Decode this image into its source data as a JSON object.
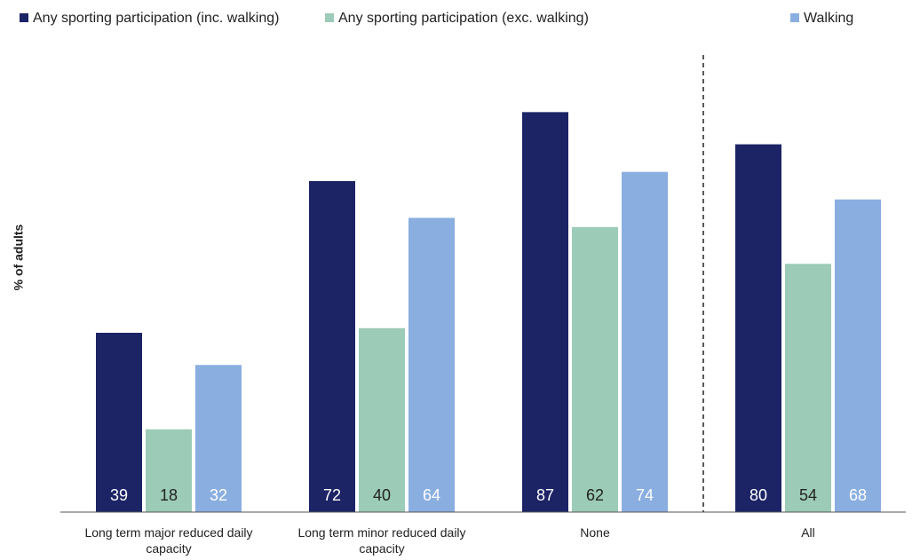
{
  "chart_data": {
    "type": "bar",
    "y_label": "% of adults",
    "categories": [
      "Long term major reduced daily capacity",
      "Long term minor reduced daily capacity",
      "None",
      "All"
    ],
    "series": [
      {
        "name": "Any sporting participation (inc. walking)",
        "color": "#1c2466",
        "values": [
          39,
          72,
          87,
          80
        ]
      },
      {
        "name": "Any sporting participation (exc. walking)",
        "color": "#9ccbb7",
        "values": [
          18,
          40,
          62,
          54
        ]
      },
      {
        "name": "Walking",
        "color": "#8aaee0",
        "values": [
          32,
          64,
          74,
          68
        ]
      }
    ],
    "ylim": [
      0,
      100
    ]
  }
}
